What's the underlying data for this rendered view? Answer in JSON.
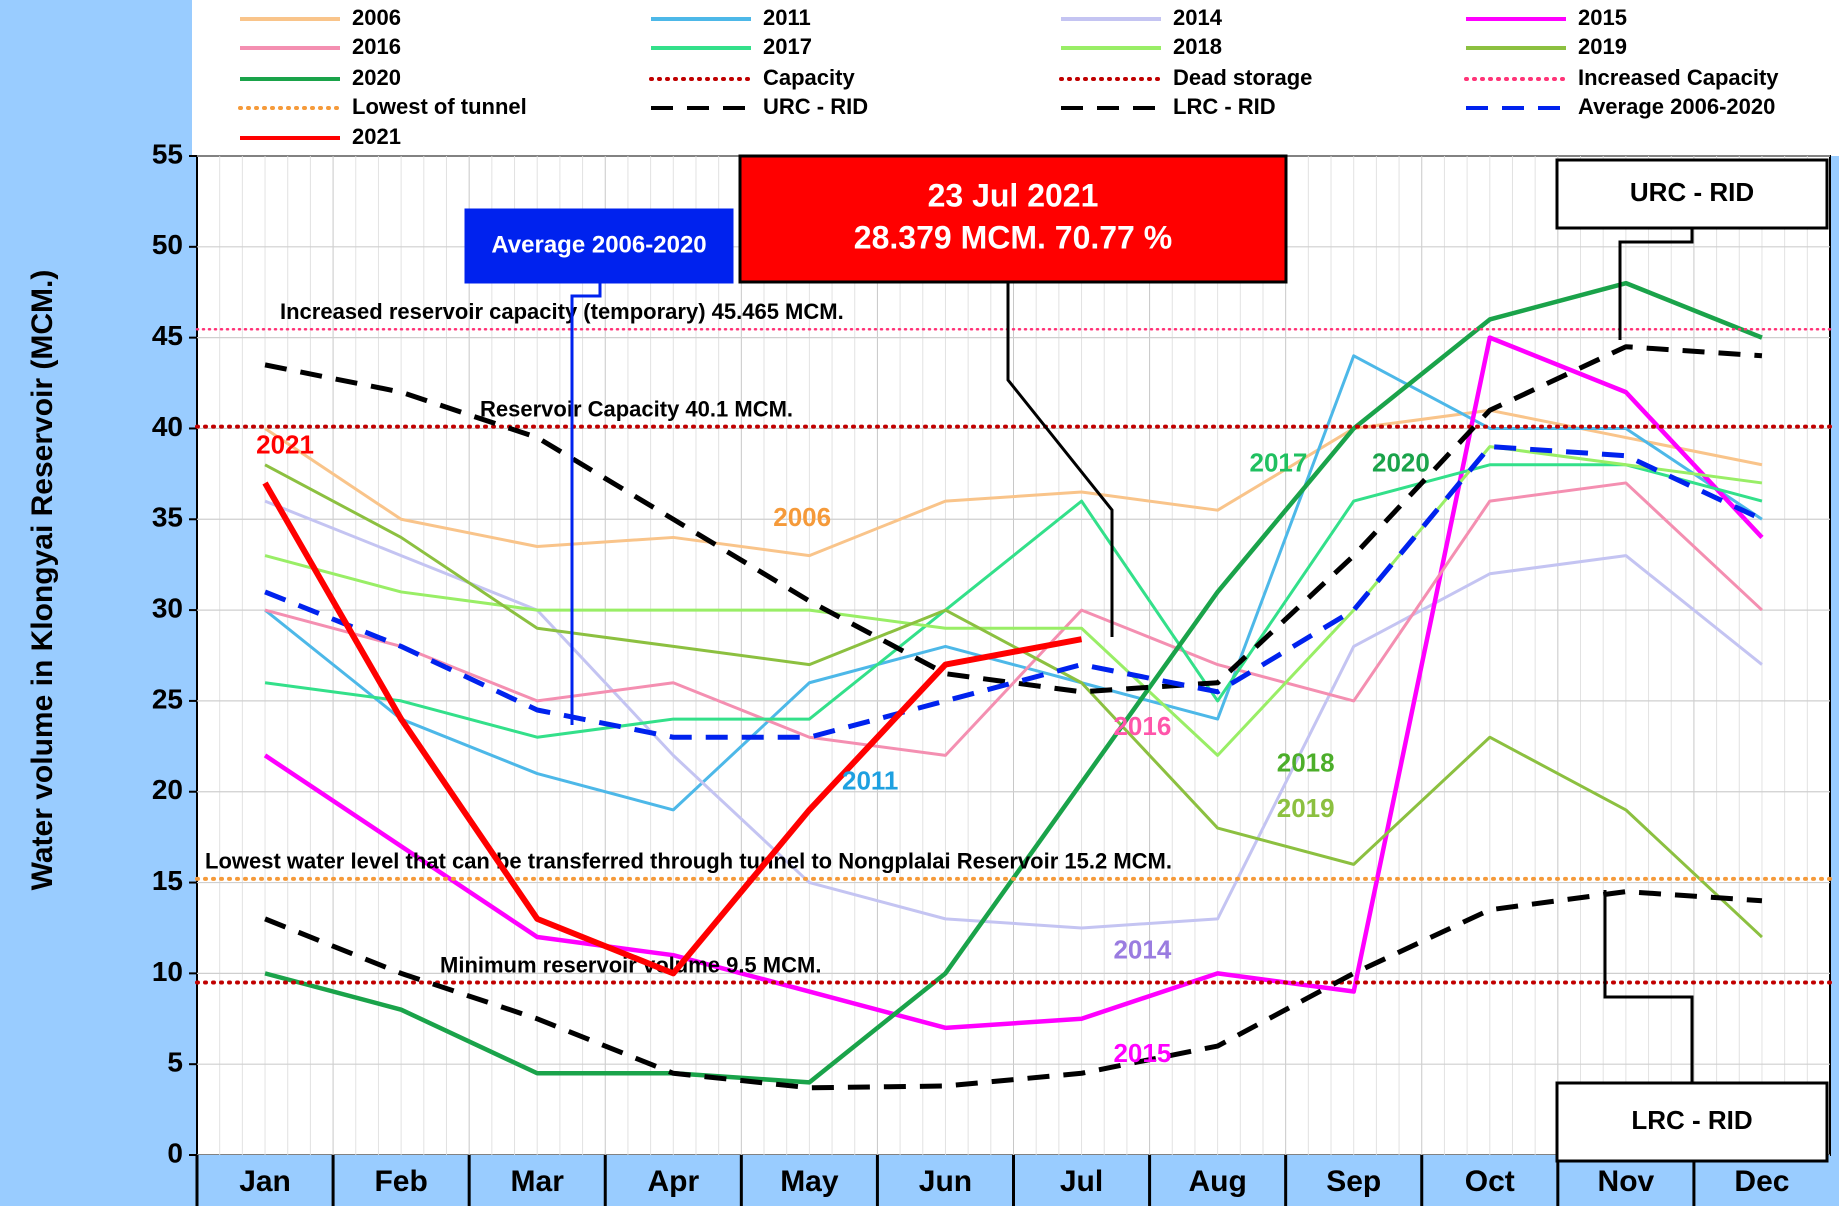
{
  "chart_data": {
    "type": "line",
    "y_label": "Water volume in Klongyai Reservoir (MCM.)",
    "categories": [
      "Jan",
      "Feb",
      "Mar",
      "Apr",
      "May",
      "Jun",
      "Jul",
      "Aug",
      "Sep",
      "Oct",
      "Nov",
      "Dec"
    ],
    "ylim": [
      0,
      55
    ],
    "yticks": [
      0,
      5,
      10,
      15,
      20,
      25,
      30,
      35,
      40,
      45,
      50,
      55
    ],
    "grid": true,
    "series": [
      {
        "name": "2006",
        "color": "#f9c48a",
        "line_style": "solid",
        "values": [
          40,
          35,
          33.5,
          34,
          33,
          36,
          36.5,
          35.5,
          40,
          41,
          39.5,
          38
        ]
      },
      {
        "name": "2011",
        "color": "#4db8e8",
        "line_style": "solid",
        "values": [
          30,
          24,
          21,
          19,
          26,
          28,
          26,
          24,
          44,
          40,
          40,
          35
        ]
      },
      {
        "name": "2014",
        "color": "#c4c4f2",
        "line_style": "solid",
        "values": [
          36,
          33,
          30,
          22,
          15,
          13,
          12.5,
          13,
          28,
          32,
          33,
          27
        ]
      },
      {
        "name": "2015",
        "color": "#ff00ff",
        "line_style": "solid",
        "values": [
          22,
          17,
          12,
          11,
          9,
          7,
          7.5,
          10,
          9,
          45,
          42,
          34
        ]
      },
      {
        "name": "2016",
        "color": "#f48fb1",
        "line_style": "solid",
        "values": [
          30,
          28,
          25,
          26,
          23,
          22,
          30,
          27,
          25,
          36,
          37,
          30
        ]
      },
      {
        "name": "2017",
        "color": "#33e08a",
        "line_style": "solid",
        "values": [
          26,
          25,
          23,
          24,
          24,
          30,
          36,
          25,
          36,
          38,
          38,
          36
        ]
      },
      {
        "name": "2018",
        "color": "#99ee66",
        "line_style": "solid",
        "values": [
          33,
          31,
          30,
          30,
          30,
          29,
          29,
          22,
          30,
          39,
          38,
          37
        ]
      },
      {
        "name": "2019",
        "color": "#8cc040",
        "line_style": "solid",
        "values": [
          38,
          34,
          29,
          28,
          27,
          30,
          26,
          18,
          16,
          23,
          19,
          12
        ]
      },
      {
        "name": "2020",
        "color": "#1aa34a",
        "line_style": "solid",
        "values": [
          10,
          8,
          4.5,
          4.5,
          4,
          10,
          20.5,
          31,
          40,
          46,
          48,
          45
        ]
      },
      {
        "name": "Capacity",
        "color": "#c00000",
        "line_style": "dotted",
        "hline": 40.1,
        "label": "Reservoir Capacity 40.1 MCM."
      },
      {
        "name": "Dead storage",
        "color": "#c00000",
        "line_style": "dotted",
        "hline": 9.5,
        "label": "Minimum reservoir volume 9.5 MCM."
      },
      {
        "name": "Increased Capacity",
        "color": "#ff3377",
        "line_style": "dotted",
        "hline": 45.465,
        "label": "Increased reservoir capacity (temporary) 45.465 MCM."
      },
      {
        "name": "Lowest of tunnel",
        "color": "#f59a3a",
        "line_style": "dotted",
        "hline": 15.2,
        "label": "Lowest water level that can be transferred through tunnel to Nongplalai Reservoir 15.2 MCM."
      },
      {
        "name": "URC - RID",
        "color": "#000000",
        "line_style": "dashed",
        "values": [
          43.5,
          42,
          39.5,
          35,
          30.5,
          26.5,
          25.5,
          26,
          33,
          41,
          44.5,
          44
        ]
      },
      {
        "name": "LRC - RID",
        "color": "#000000",
        "line_style": "dashed",
        "values": [
          13,
          10,
          7.5,
          4.5,
          3.7,
          3.8,
          4.5,
          6,
          10,
          13.5,
          14.5,
          14
        ]
      },
      {
        "name": "Average 2006-2020",
        "color": "#0022ee",
        "line_style": "dashed",
        "values": [
          31,
          28,
          24.5,
          23,
          23,
          25,
          27,
          25.5,
          30,
          39,
          38.5,
          35
        ]
      },
      {
        "name": "2021",
        "color": "#ff0000",
        "line_style": "solid",
        "values": [
          37,
          24,
          13,
          10,
          19,
          27,
          28.4,
          null,
          null,
          null,
          null,
          null
        ]
      }
    ],
    "callouts": [
      {
        "lines": [
          "23 Jul 2021",
          "28.379 MCM. 70.77 %"
        ]
      },
      {
        "lines": [
          "Average 2006-2020"
        ]
      },
      {
        "lines": [
          "URC - RID"
        ]
      },
      {
        "lines": [
          "LRC - RID"
        ]
      }
    ]
  }
}
